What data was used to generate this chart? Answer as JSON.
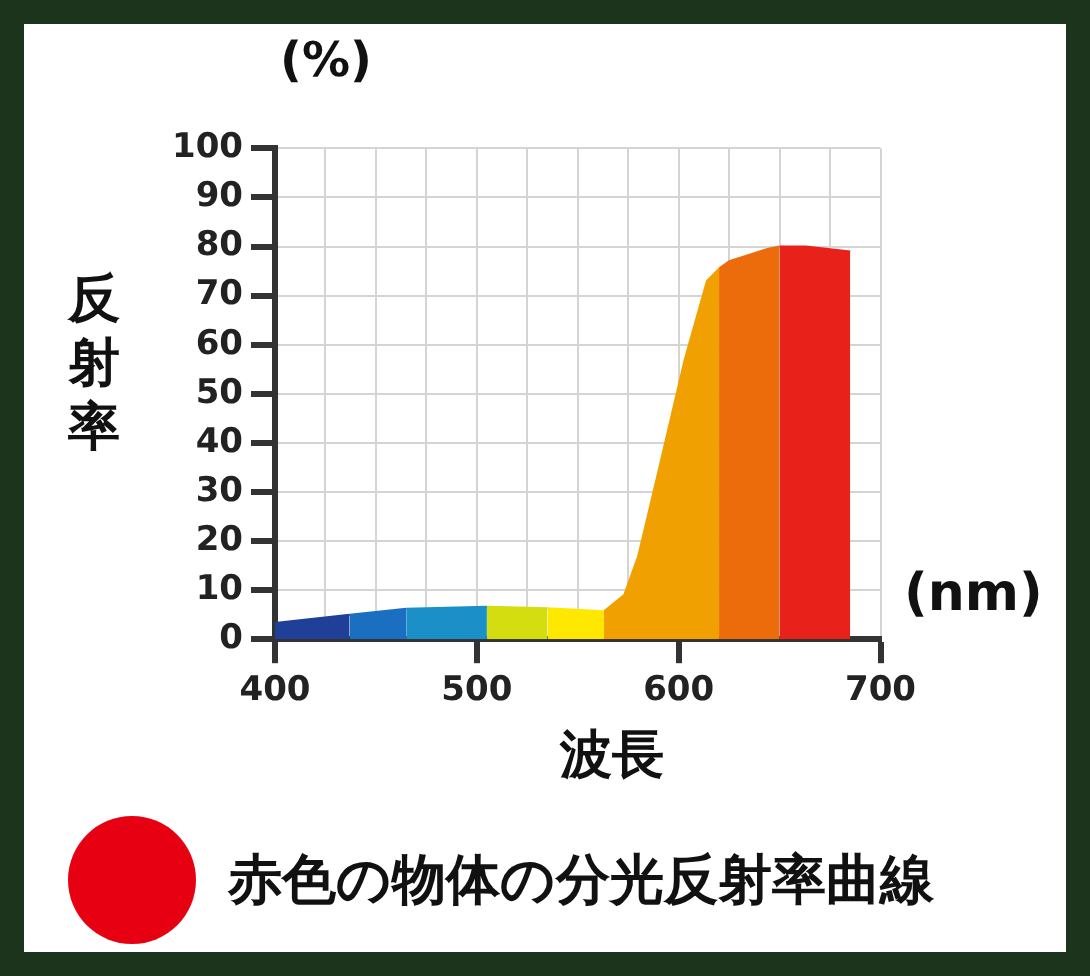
{
  "chart_data": {
    "type": "area",
    "title": "赤色の物体の分光反射率曲線",
    "xlabel": "波長",
    "ylabel": "反射率",
    "annotations": [
      "(%)",
      "(nm)"
    ],
    "series": [
      {
        "color": "#1f3f98",
        "x": [
          400,
          437
        ],
        "values": [
          3.3,
          5
        ]
      },
      {
        "color": "#1a6fc0",
        "x": [
          437,
          465
        ],
        "values": [
          5,
          6.2
        ]
      },
      {
        "color": "#1b8fc8",
        "x": [
          465,
          505
        ],
        "values": [
          6.2,
          6.6
        ]
      },
      {
        "color": "#d3dd10",
        "x": [
          505,
          535
        ],
        "values": [
          6.6,
          6.3
        ]
      },
      {
        "color": "#ffe800",
        "x": [
          535,
          563
        ],
        "values": [
          6.3,
          5.7
        ]
      },
      {
        "color": "#f0a000",
        "x": [
          563,
          573,
          580,
          591,
          603,
          614,
          620
        ],
        "values": [
          5.7,
          9,
          17,
          36,
          57,
          73,
          75.5
        ]
      },
      {
        "color": "#ec6c0c",
        "x": [
          620,
          625,
          644,
          650
        ],
        "values": [
          75.5,
          77,
          79.5,
          80
        ]
      },
      {
        "color": "#e8221a",
        "x": [
          650,
          663,
          685
        ],
        "values": [
          80,
          80,
          79
        ]
      }
    ],
    "xlim": [
      400,
      700
    ],
    "ylim": [
      0,
      100
    ],
    "xticks": [
      400,
      {
        "value": 425,
        "label": null
      },
      {
        "value": 450,
        "label": null
      },
      {
        "value": 475,
        "label": null
      },
      500,
      {
        "value": 525,
        "label": null
      },
      {
        "value": 550,
        "label": null
      },
      {
        "value": 575,
        "label": null
      },
      600,
      {
        "value": 625,
        "label": null
      },
      {
        "value": 650,
        "label": null
      },
      {
        "value": 675,
        "label": null
      },
      700
    ],
    "yticks": [
      0,
      10,
      20,
      30,
      40,
      50,
      60,
      70,
      80,
      90,
      100
    ],
    "grid": true,
    "legend": false
  }
}
